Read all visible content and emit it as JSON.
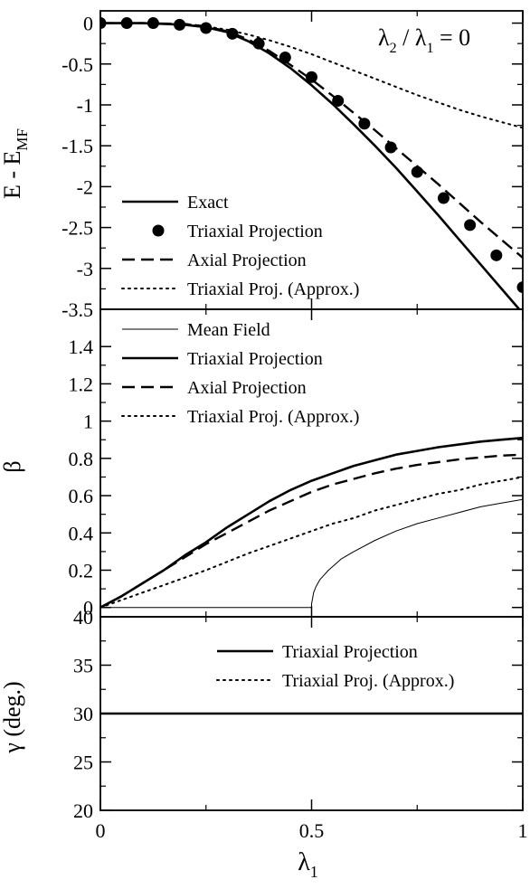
{
  "chart_data": [
    {
      "type": "line",
      "annotation": {
        "text": "λ₂ / λ₁ = 0",
        "base": "λ",
        "sub1": "2",
        "mid": " / λ",
        "sub2": "1",
        "tail": " = 0"
      },
      "ylabel": {
        "base": "E - E",
        "sub": "MF"
      },
      "xlim": [
        0,
        1
      ],
      "ylim": [
        -3.5,
        0.15
      ],
      "yticks": [
        0,
        -0.5,
        -1,
        -1.5,
        -2,
        -2.5,
        -3,
        -3.5
      ],
      "ytick_labels": [
        "0",
        "-0.5",
        "-1",
        "-1.5",
        "-2",
        "-2.5",
        "-3",
        "-3.5"
      ],
      "legend": "bottom-left",
      "series": [
        {
          "name": "Exact",
          "style": "solid",
          "x": [
            0,
            0.05,
            0.1,
            0.15,
            0.2,
            0.25,
            0.3,
            0.35,
            0.4,
            0.45,
            0.5,
            0.55,
            0.6,
            0.65,
            0.7,
            0.75,
            0.8,
            0.85,
            0.9,
            0.95,
            1.0
          ],
          "y": [
            0,
            0,
            0,
            -0.01,
            -0.02,
            -0.05,
            -0.11,
            -0.22,
            -0.37,
            -0.55,
            -0.76,
            -0.99,
            -1.24,
            -1.5,
            -1.77,
            -2.06,
            -2.35,
            -2.65,
            -2.95,
            -3.25,
            -3.55
          ]
        },
        {
          "name": "Triaxial Projection",
          "style": "markers",
          "x": [
            0,
            0.0625,
            0.125,
            0.1875,
            0.25,
            0.3125,
            0.375,
            0.4375,
            0.5,
            0.5625,
            0.625,
            0.6875,
            0.75,
            0.8125,
            0.875,
            0.9375,
            1.0
          ],
          "y": [
            0,
            0,
            0,
            -0.02,
            -0.06,
            -0.13,
            -0.25,
            -0.42,
            -0.66,
            -0.95,
            -1.23,
            -1.52,
            -1.82,
            -2.14,
            -2.47,
            -2.84,
            -3.23
          ]
        },
        {
          "name": "Axial Projection",
          "style": "dashed",
          "x": [
            0,
            0.1,
            0.2,
            0.25,
            0.3,
            0.35,
            0.4,
            0.45,
            0.5,
            0.55,
            0.6,
            0.65,
            0.7,
            0.75,
            0.8,
            0.85,
            0.9,
            0.95,
            1.0
          ],
          "y": [
            0,
            0,
            -0.01,
            -0.04,
            -0.1,
            -0.2,
            -0.34,
            -0.51,
            -0.69,
            -0.89,
            -1.1,
            -1.31,
            -1.53,
            -1.75,
            -1.97,
            -2.2,
            -2.43,
            -2.65,
            -2.87
          ]
        },
        {
          "name": "Triaxial Proj. (Approx.)",
          "style": "dotted",
          "x": [
            0,
            0.1,
            0.2,
            0.25,
            0.3,
            0.35,
            0.4,
            0.45,
            0.5,
            0.55,
            0.6,
            0.65,
            0.7,
            0.75,
            0.8,
            0.85,
            0.9,
            0.95,
            1.0
          ],
          "y": [
            0,
            0,
            -0.01,
            -0.04,
            -0.08,
            -0.14,
            -0.21,
            -0.29,
            -0.38,
            -0.48,
            -0.58,
            -0.68,
            -0.78,
            -0.88,
            -0.97,
            -1.06,
            -1.14,
            -1.21,
            -1.28
          ]
        }
      ]
    },
    {
      "type": "line",
      "ylabel": {
        "base": "β",
        "sub": ""
      },
      "xlim": [
        0,
        1
      ],
      "ylim": [
        -0.05,
        1.6
      ],
      "yticks": [
        0,
        0.2,
        0.4,
        0.6,
        0.8,
        1,
        1.2,
        1.4
      ],
      "ytick_labels": [
        "0",
        "0.2",
        "0.4",
        "0.6",
        "0.8",
        "1",
        "1.2",
        "1.4"
      ],
      "legend": "top-left",
      "series": [
        {
          "name": "Mean Field",
          "style": "thin",
          "x": [
            0,
            0.25,
            0.5,
            0.5,
            0.505,
            0.51,
            0.52,
            0.54,
            0.57,
            0.6,
            0.65,
            0.7,
            0.75,
            0.8,
            0.85,
            0.9,
            0.95,
            1.0
          ],
          "y": [
            0,
            0,
            0,
            0.02,
            0.08,
            0.11,
            0.15,
            0.2,
            0.26,
            0.3,
            0.36,
            0.41,
            0.45,
            0.48,
            0.51,
            0.54,
            0.56,
            0.58
          ]
        },
        {
          "name": "Triaxial Projection",
          "style": "solid",
          "x": [
            0,
            0.05,
            0.1,
            0.15,
            0.2,
            0.25,
            0.3,
            0.35,
            0.4,
            0.45,
            0.5,
            0.55,
            0.6,
            0.65,
            0.7,
            0.75,
            0.8,
            0.85,
            0.9,
            0.95,
            1.0
          ],
          "y": [
            0,
            0.06,
            0.13,
            0.2,
            0.28,
            0.35,
            0.43,
            0.5,
            0.57,
            0.63,
            0.68,
            0.72,
            0.76,
            0.79,
            0.82,
            0.84,
            0.86,
            0.875,
            0.89,
            0.9,
            0.91
          ]
        },
        {
          "name": "Axial Projection",
          "style": "dashed",
          "x": [
            0,
            0.05,
            0.1,
            0.15,
            0.2,
            0.25,
            0.3,
            0.35,
            0.4,
            0.45,
            0.5,
            0.55,
            0.6,
            0.65,
            0.7,
            0.75,
            0.8,
            0.85,
            0.9,
            0.95,
            1.0
          ],
          "y": [
            0,
            0.06,
            0.13,
            0.2,
            0.27,
            0.34,
            0.4,
            0.46,
            0.52,
            0.57,
            0.62,
            0.66,
            0.69,
            0.72,
            0.745,
            0.765,
            0.78,
            0.795,
            0.805,
            0.815,
            0.82
          ]
        },
        {
          "name": "Triaxial Proj. (Approx.)",
          "style": "dotted",
          "x": [
            0,
            0.05,
            0.1,
            0.15,
            0.2,
            0.25,
            0.3,
            0.35,
            0.4,
            0.45,
            0.5,
            0.55,
            0.6,
            0.65,
            0.7,
            0.75,
            0.8,
            0.85,
            0.9,
            0.95,
            1.0
          ],
          "y": [
            0,
            0.04,
            0.08,
            0.12,
            0.16,
            0.2,
            0.245,
            0.29,
            0.33,
            0.37,
            0.41,
            0.45,
            0.48,
            0.52,
            0.55,
            0.58,
            0.61,
            0.63,
            0.66,
            0.68,
            0.7
          ]
        }
      ]
    },
    {
      "type": "line",
      "ylabel": {
        "base": "γ  (deg.)",
        "sub": ""
      },
      "xlabel": {
        "base": "λ",
        "sub": "1"
      },
      "xlim": [
        0,
        1
      ],
      "ylim": [
        20,
        40
      ],
      "yticks": [
        20,
        25,
        30,
        35,
        40
      ],
      "ytick_labels": [
        "20",
        "25",
        "30",
        "35",
        "40"
      ],
      "xticks": [
        0,
        0.5,
        1
      ],
      "xtick_labels": [
        "0",
        "0.5",
        "1"
      ],
      "legend": "top-right",
      "series": [
        {
          "name": "Triaxial Projection",
          "style": "solid",
          "x": [
            0,
            1
          ],
          "y": [
            30,
            30
          ]
        },
        {
          "name": "Triaxial Proj. (Approx.)",
          "style": "dotted",
          "x": [
            0,
            1
          ],
          "y": [
            30,
            30
          ]
        }
      ]
    }
  ]
}
